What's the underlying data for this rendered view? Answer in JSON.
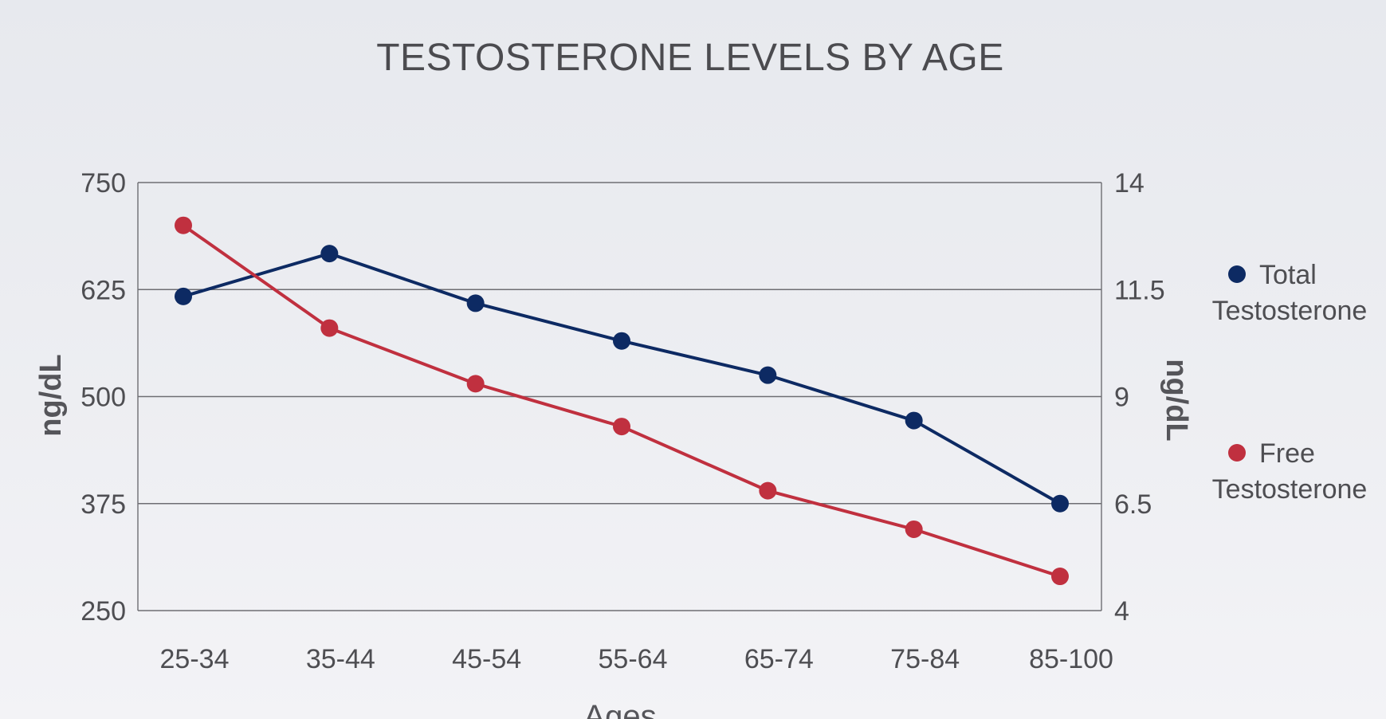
{
  "chart_data": {
    "type": "line",
    "title": "TESTOSTERONE LEVELS BY AGE",
    "xlabel": "Ages",
    "ylabel_left": "ng/dL",
    "ylabel_right": "ng/dL",
    "categories": [
      "25-34",
      "35-44",
      "45-54",
      "55-64",
      "65-74",
      "75-84",
      "85-100"
    ],
    "y_left": {
      "lim": [
        250,
        750
      ],
      "ticks": [
        "250",
        "375",
        "500",
        "625",
        "750"
      ]
    },
    "y_right": {
      "lim": [
        4,
        14
      ],
      "ticks": [
        "4",
        "6.5",
        "9",
        "11.5",
        "14"
      ]
    },
    "grid": true,
    "legend_position": "right",
    "series": [
      {
        "name": "Total Testosterone",
        "legend_lines": [
          "Total",
          "Testosterone"
        ],
        "axis": "left",
        "color": "#0d2a63",
        "values": [
          617,
          667,
          609,
          565,
          525,
          472,
          375
        ]
      },
      {
        "name": "Free Testosterone",
        "legend_lines": [
          "Free",
          "Testosterone"
        ],
        "axis": "right",
        "color": "#c0303f",
        "values": [
          13.0,
          10.6,
          9.3,
          8.3,
          6.8,
          5.9,
          4.8
        ]
      }
    ]
  }
}
